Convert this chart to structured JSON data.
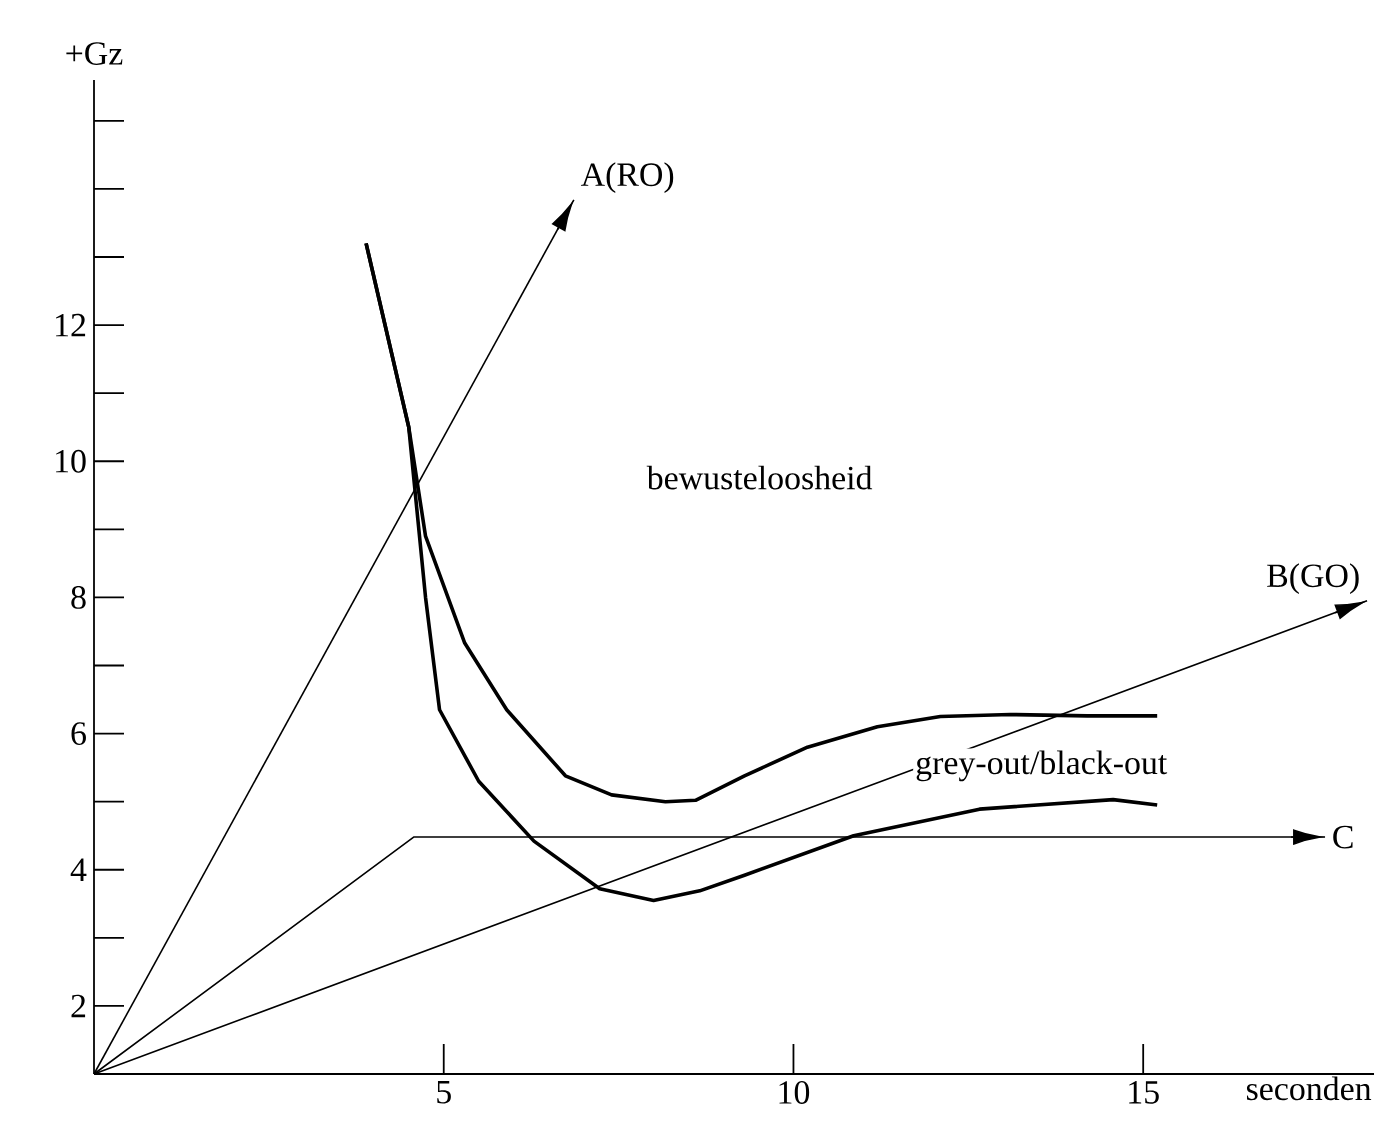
{
  "chart_data": {
    "type": "line",
    "xlabel": "seconden",
    "ylabel": "+Gz",
    "annotations": [
      "bewusteloosheid",
      "grey-out/black-out"
    ],
    "xlim": [
      0,
      18.3
    ],
    "ylim": [
      1,
      15.6
    ],
    "xticks": [
      5,
      10,
      15
    ],
    "yticks": [
      2,
      {
        "value": 3,
        "label": null
      },
      4,
      {
        "value": 5,
        "label": null
      },
      6,
      {
        "value": 7,
        "label": null
      },
      8,
      {
        "value": 9,
        "label": null
      },
      10,
      {
        "value": 11,
        "label": null
      },
      12,
      {
        "value": 13,
        "label": null
      },
      {
        "value": 14,
        "label": null
      },
      {
        "value": 15,
        "label": null
      }
    ],
    "series": [
      {
        "name": "A(RO)",
        "color": "#000000",
        "x": [
          0,
          6.86
        ],
        "values": [
          1,
          13.84
        ]
      },
      {
        "name": "B(GO)",
        "color": "#000000",
        "x": [
          0,
          18.2
        ],
        "values": [
          1,
          7.95
        ]
      },
      {
        "name": "C",
        "color": "#000000",
        "x": [
          0,
          4.57,
          17.6
        ],
        "values": [
          1,
          4.48,
          4.48
        ]
      },
      {
        "color": "#000000",
        "x": [
          3.89,
          4.5,
          4.74,
          5.3,
          5.9,
          6.74,
          7.4,
          8.17,
          8.6,
          9.3,
          10.2,
          11.2,
          12.1,
          13.1,
          14.2,
          15.2
        ],
        "values": [
          13.2,
          10.5,
          8.9,
          7.33,
          6.35,
          5.38,
          5.1,
          5.0,
          5.02,
          5.38,
          5.8,
          6.1,
          6.25,
          6.28,
          6.26,
          6.26
        ]
      },
      {
        "color": "#000000",
        "x": [
          3.89,
          4.5,
          4.74,
          4.94,
          5.5,
          6.29,
          7.23,
          8.0,
          8.66,
          9.3,
          10.86,
          12.66,
          14.57,
          15.2
        ],
        "values": [
          13.2,
          10.5,
          8.0,
          6.35,
          5.3,
          4.42,
          3.72,
          3.55,
          3.69,
          3.92,
          4.5,
          4.89,
          5.03,
          4.95
        ]
      }
    ]
  }
}
